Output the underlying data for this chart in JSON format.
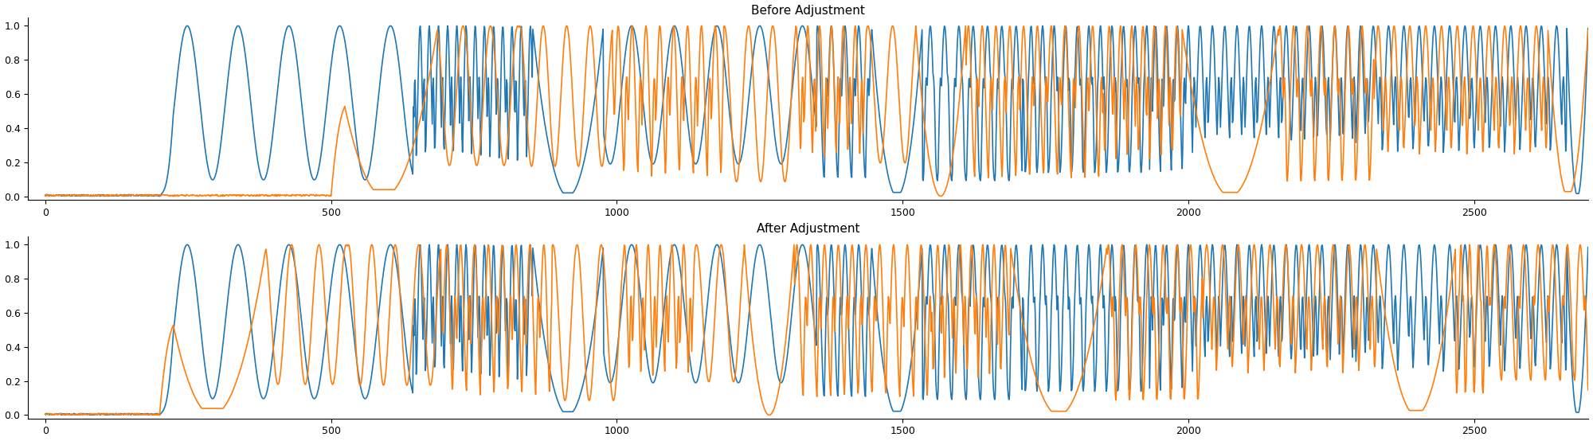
{
  "title_top": "Before Adjustment",
  "title_bottom": "After Adjustment",
  "color_blue": "#1f77b4",
  "color_orange": "#ff7f0e",
  "n_points": 2700,
  "ylim": [
    -0.02,
    1.05
  ],
  "yticks": [
    0.0,
    0.2,
    0.4,
    0.6,
    0.8,
    1.0
  ],
  "xticks": [
    0,
    500,
    1000,
    1500,
    2000,
    2500
  ],
  "figsize": [
    20.0,
    5.54
  ],
  "dpi": 100,
  "linewidth": 1.2,
  "bg_color": "#ffffff"
}
